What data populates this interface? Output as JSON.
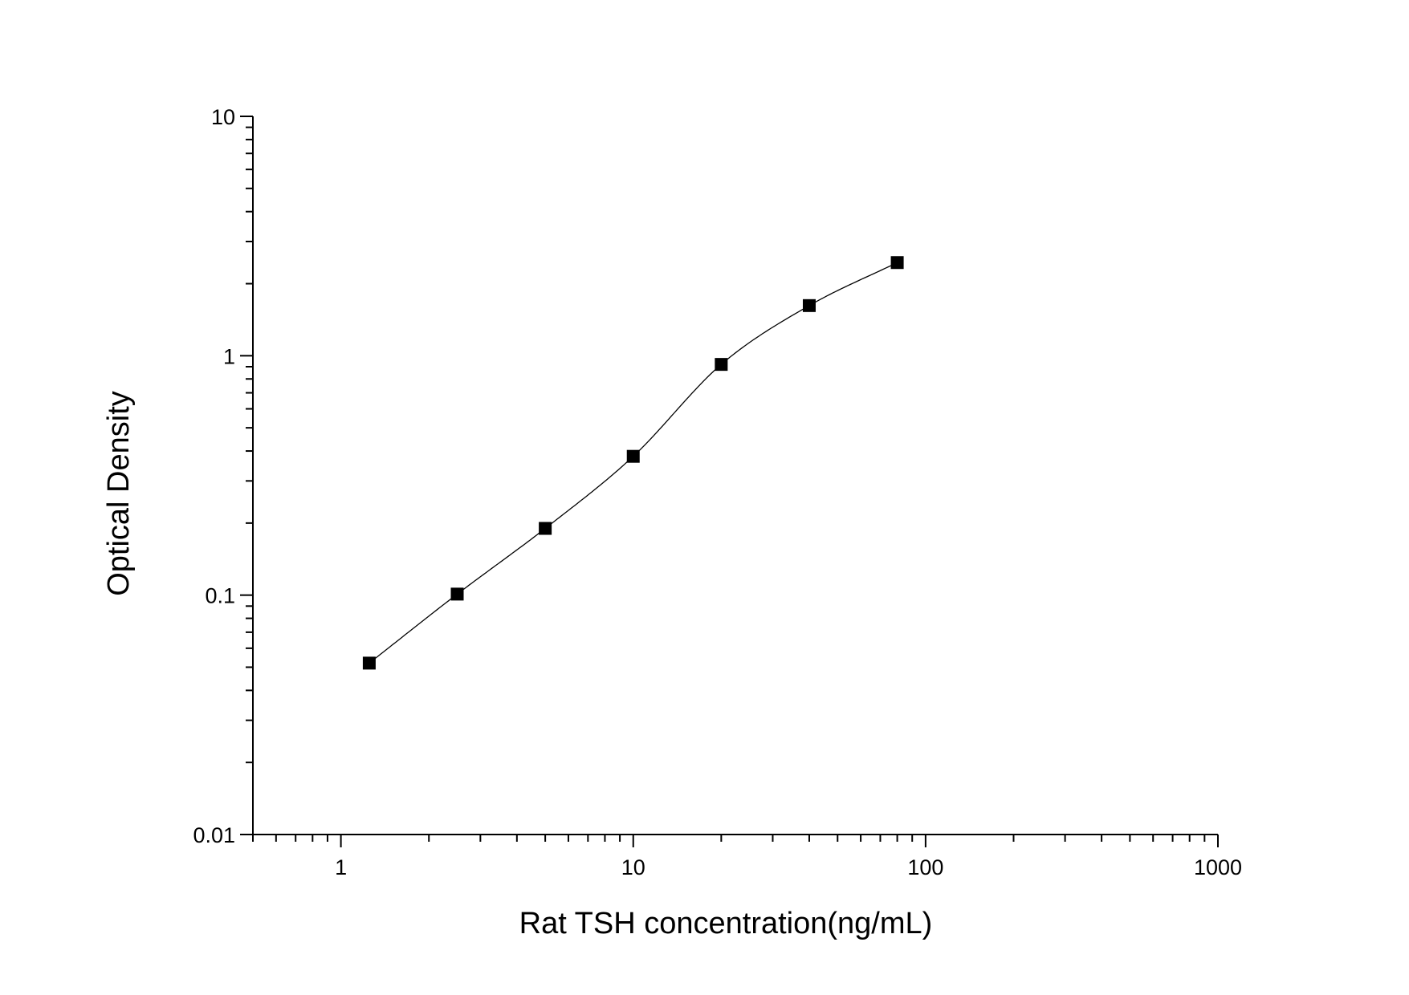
{
  "chart_data": {
    "type": "scatter",
    "title": "",
    "xlabel": "Rat TSH concentration(ng/mL)",
    "ylabel": "Optical Density",
    "x_scale": "log",
    "y_scale": "log",
    "xlim": [
      0.5,
      1000
    ],
    "ylim": [
      0.01,
      10
    ],
    "x_ticks": [
      {
        "value": 1,
        "label": "1"
      },
      {
        "value": 10,
        "label": "10"
      },
      {
        "value": 100,
        "label": "100"
      },
      {
        "value": 1000,
        "label": "1000"
      }
    ],
    "y_ticks": [
      {
        "value": 0.01,
        "label": "0.01"
      },
      {
        "value": 0.1,
        "label": "0.1"
      },
      {
        "value": 1,
        "label": "1"
      },
      {
        "value": 10,
        "label": "10"
      }
    ],
    "grid": false,
    "legend": "none",
    "series": [
      {
        "marker": "square",
        "color": "#000000",
        "x": [
          1.25,
          2.5,
          5,
          10,
          20,
          40,
          80
        ],
        "y": [
          0.052,
          0.101,
          0.19,
          0.38,
          0.92,
          1.62,
          2.45
        ]
      }
    ],
    "fit_curve": {
      "type": "4-parameter logistic",
      "color": "#000000",
      "x_range": [
        1.25,
        80
      ]
    }
  }
}
